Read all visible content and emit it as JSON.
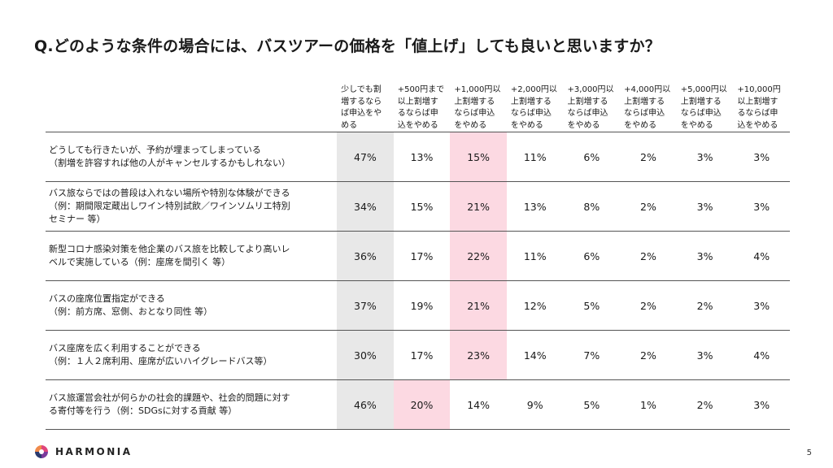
{
  "title": "Q.どのような条件の場合には、バスツアーの価格を「値上げ」しても良いと思いますか？",
  "columns": [
    "少しでも割増するならば申込をやめる",
    "+500円まで以上割増するならば申込をやめる",
    "+1,000円以上割増するならば申込をやめる",
    "+2,000円以上割増するならば申込をやめる",
    "+3,000円以上割増するならば申込をやめる",
    "+4,000円以上割増するならば申込をやめる",
    "+5,000円以上割増するならば申込をやめる",
    "+10,000円以上割増するならば申込をやめる"
  ],
  "column_lines": [
    [
      "少しでも割",
      "増するなら",
      "ば申込をや",
      "める"
    ],
    [
      "+500円まで",
      "以上割増す",
      "るならば申",
      "込をやめる"
    ],
    [
      "+1,000円以",
      "上割増する",
      "ならば申込",
      "をやめる"
    ],
    [
      "+2,000円以",
      "上割増する",
      "ならば申込",
      "をやめる"
    ],
    [
      "+3,000円以",
      "上割増する",
      "ならば申込",
      "をやめる"
    ],
    [
      "+4,000円以",
      "上割増する",
      "ならば申込",
      "をやめる"
    ],
    [
      "+5,000円以",
      "上割増する",
      "ならば申込",
      "をやめる"
    ],
    [
      "+10,000円",
      "以上割増す",
      "るならば申",
      "込をやめる"
    ]
  ],
  "rows": [
    {
      "label_lines": [
        "どうしても行きたいが、予約が埋まってしまっている",
        "（割増を許容すれば他の人がキャンセルするかもしれない）"
      ],
      "values": [
        "47%",
        "13%",
        "15%",
        "11%",
        "6%",
        "2%",
        "3%",
        "3%"
      ],
      "highlight": [
        0,
        2
      ]
    },
    {
      "label_lines": [
        "バス旅ならではの普段は入れない場所や特別な体験ができる",
        "（例：期間限定蔵出しワイン特別試飲／ワインソムリエ特別",
        "セミナー 等）"
      ],
      "values": [
        "34%",
        "15%",
        "21%",
        "13%",
        "8%",
        "2%",
        "3%",
        "3%"
      ],
      "highlight": [
        0,
        2
      ]
    },
    {
      "label_lines": [
        "新型コロナ感染対策を他企業のバス旅を比較してより高いレ",
        "ベルで実施している（例：座席を間引く 等）"
      ],
      "values": [
        "36%",
        "17%",
        "22%",
        "11%",
        "6%",
        "2%",
        "3%",
        "4%"
      ],
      "highlight": [
        0,
        2
      ]
    },
    {
      "label_lines": [
        "バスの座席位置指定ができる",
        "（例：前方席、窓側、おとなり同性 等）"
      ],
      "values": [
        "37%",
        "19%",
        "21%",
        "12%",
        "5%",
        "2%",
        "2%",
        "3%"
      ],
      "highlight": [
        0,
        2
      ]
    },
    {
      "label_lines": [
        "バス座席を広く利用することができる",
        "（例：１人２席利用、座席が広いハイグレードバス等）"
      ],
      "values": [
        "30%",
        "17%",
        "23%",
        "14%",
        "7%",
        "2%",
        "3%",
        "4%"
      ],
      "highlight": [
        0,
        2
      ]
    },
    {
      "label_lines": [
        "バス旅運営会社が何らかの社会的課題や、社会的問題に対す",
        "る寄付等を行う（例：SDGsに対する貢献 等）"
      ],
      "values": [
        "46%",
        "20%",
        "14%",
        "9%",
        "5%",
        "1%",
        "2%",
        "3%"
      ],
      "highlight": [
        0,
        1
      ]
    }
  ],
  "colors": {
    "gray_highlight": "#e8e8e8",
    "pink_highlight": "#fcd9e2"
  },
  "footer": {
    "logo_text": "HARMONIA",
    "logo_icon": "harmonia-logo-icon",
    "page_number": "5"
  }
}
